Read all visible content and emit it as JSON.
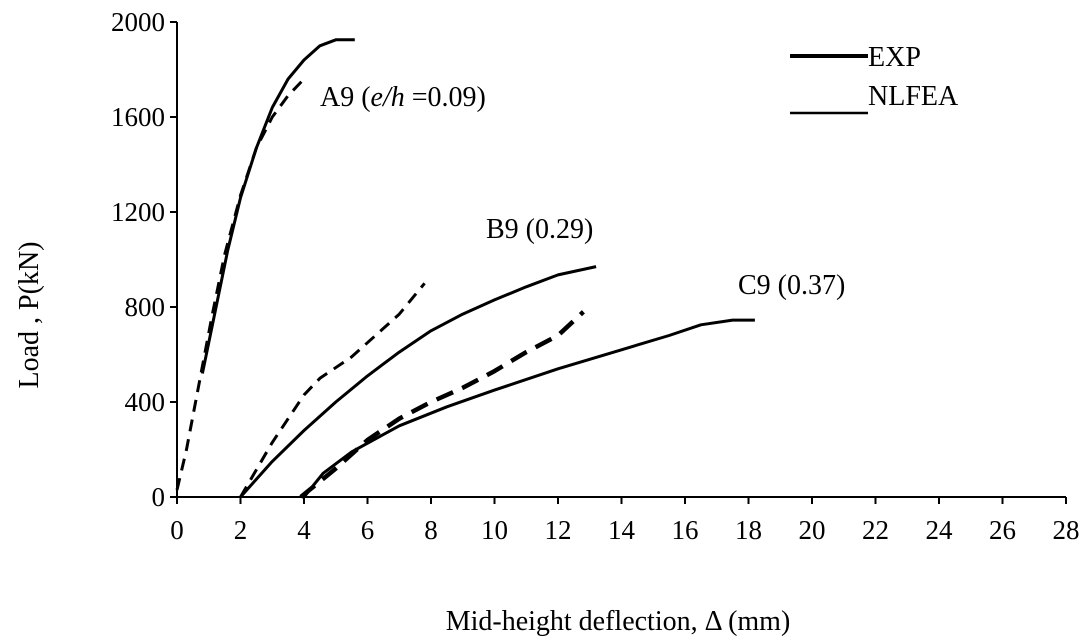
{
  "chart_data": {
    "type": "line",
    "xlabel": "Mid-height deflection, Δ (mm)",
    "ylabel": "Load , P(kN)",
    "xlim": [
      0,
      28
    ],
    "ylim": [
      0,
      2000
    ],
    "xticks": [
      0,
      2,
      4,
      6,
      8,
      10,
      12,
      14,
      16,
      18,
      20,
      22,
      24,
      26,
      28
    ],
    "yticks": [
      0,
      400,
      800,
      1200,
      1600,
      2000
    ],
    "grid": false,
    "legend": {
      "placement": "top-right",
      "entries": [
        {
          "label": "EXP",
          "style": "solid"
        },
        {
          "label": "NLFEA",
          "style": "solid"
        }
      ]
    },
    "annotations": [
      {
        "text_main": "A9 (",
        "text_ital1": "e/h",
        "text_rest": " =0.09)",
        "x": 4.6,
        "y": 1690
      },
      {
        "text": "B9 (0.29)",
        "x": 9.7,
        "y": 1110
      },
      {
        "text": "C9 (0.37)",
        "x": 17.3,
        "y": 880
      }
    ],
    "series": [
      {
        "group": "A9",
        "style": "solid",
        "points": [
          [
            0.8,
            520
          ],
          [
            1.2,
            780
          ],
          [
            1.6,
            1040
          ],
          [
            2.0,
            1260
          ],
          [
            2.5,
            1470
          ],
          [
            3.0,
            1640
          ],
          [
            3.5,
            1760
          ],
          [
            4.0,
            1840
          ],
          [
            4.5,
            1900
          ],
          [
            5.0,
            1925
          ],
          [
            5.6,
            1925
          ]
        ]
      },
      {
        "group": "A9",
        "style": "dashed",
        "points": [
          [
            0.0,
            30
          ],
          [
            0.3,
            200
          ],
          [
            0.7,
            480
          ],
          [
            1.1,
            760
          ],
          [
            1.5,
            1020
          ],
          [
            2.0,
            1270
          ],
          [
            2.5,
            1470
          ],
          [
            3.0,
            1600
          ],
          [
            3.5,
            1690
          ],
          [
            4.0,
            1760
          ]
        ]
      },
      {
        "group": "B9",
        "style": "solid",
        "points": [
          [
            2.0,
            0
          ],
          [
            3.0,
            150
          ],
          [
            4.0,
            280
          ],
          [
            5.0,
            400
          ],
          [
            6.0,
            510
          ],
          [
            7.0,
            610
          ],
          [
            8.0,
            700
          ],
          [
            9.0,
            770
          ],
          [
            10.0,
            830
          ],
          [
            11.0,
            885
          ],
          [
            12.0,
            935
          ],
          [
            13.2,
            970
          ]
        ]
      },
      {
        "group": "B9",
        "style": "dashed",
        "points": [
          [
            2.0,
            0
          ],
          [
            3.0,
            230
          ],
          [
            4.0,
            430
          ],
          [
            4.5,
            500
          ],
          [
            5.5,
            590
          ],
          [
            6.5,
            710
          ],
          [
            7.0,
            770
          ],
          [
            7.8,
            900
          ]
        ]
      },
      {
        "group": "C9",
        "style": "solid",
        "points": [
          [
            4.0,
            0
          ],
          [
            4.6,
            100
          ],
          [
            5.5,
            190
          ],
          [
            7.0,
            300
          ],
          [
            8.5,
            380
          ],
          [
            10.0,
            450
          ],
          [
            12.0,
            540
          ],
          [
            14.0,
            620
          ],
          [
            15.5,
            680
          ],
          [
            16.5,
            725
          ],
          [
            17.5,
            745
          ],
          [
            18.2,
            745
          ]
        ]
      },
      {
        "group": "C9",
        "style": "dashed",
        "points": [
          [
            3.9,
            0
          ],
          [
            5.0,
            120
          ],
          [
            6.0,
            240
          ],
          [
            7.0,
            330
          ],
          [
            8.0,
            400
          ],
          [
            9.0,
            460
          ],
          [
            10.0,
            530
          ],
          [
            11.0,
            610
          ],
          [
            12.0,
            680
          ],
          [
            12.8,
            780
          ]
        ]
      }
    ]
  }
}
